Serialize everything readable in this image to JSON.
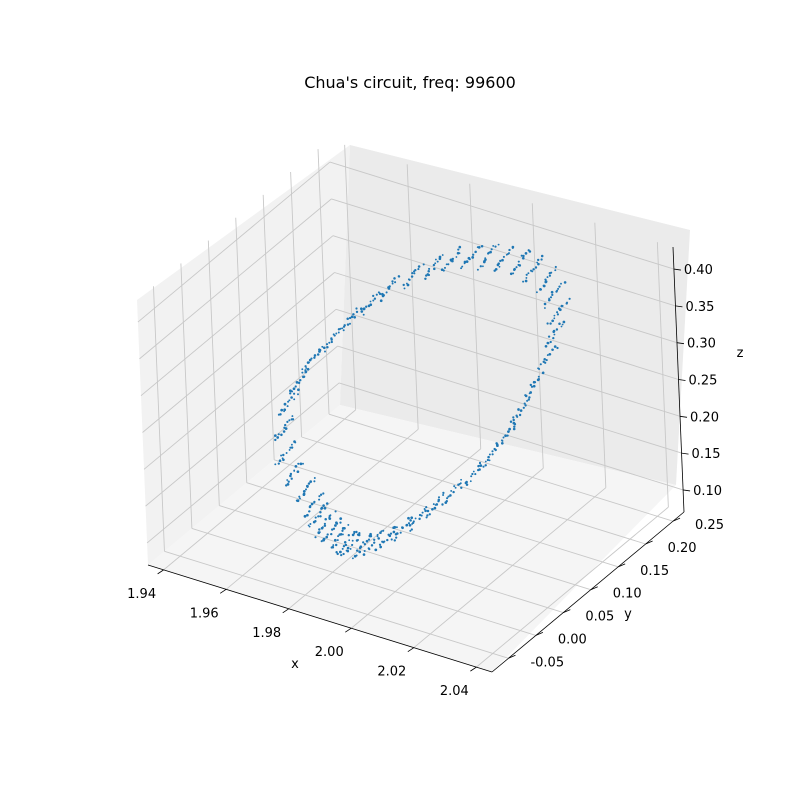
{
  "chart_data": {
    "type": "scatter",
    "title": "Chua's circuit, freq: 99600",
    "xlabel": "x",
    "ylabel": "y",
    "zlabel": "z",
    "xlim": [
      1.935,
      2.045
    ],
    "ylim": [
      -0.08,
      0.27
    ],
    "zlim": [
      0.07,
      0.43
    ],
    "xticks": [
      "1.94",
      "1.96",
      "1.98",
      "2.00",
      "2.02",
      "2.04"
    ],
    "yticks": [
      "-0.05",
      "0.00",
      "0.05",
      "0.10",
      "0.15",
      "0.20",
      "0.25"
    ],
    "zticks": [
      "0.10",
      "0.15",
      "0.20",
      "0.25",
      "0.30",
      "0.35",
      "0.40"
    ],
    "grid": true,
    "marker_color": "#1f77b4",
    "series": [
      {
        "clusters": [
          {
            "x": 1.962,
            "y": 0.07,
            "z": 0.095
          },
          {
            "x": 1.965,
            "y": 0.06,
            "z": 0.09
          },
          {
            "x": 1.969,
            "y": 0.05,
            "z": 0.09
          },
          {
            "x": 1.973,
            "y": 0.04,
            "z": 0.092
          },
          {
            "x": 1.977,
            "y": 0.03,
            "z": 0.095
          },
          {
            "x": 1.981,
            "y": 0.02,
            "z": 0.1
          },
          {
            "x": 1.985,
            "y": 0.01,
            "z": 0.108
          },
          {
            "x": 1.99,
            "y": 0.0,
            "z": 0.12
          },
          {
            "x": 1.995,
            "y": -0.005,
            "z": 0.135
          },
          {
            "x": 2.0,
            "y": -0.01,
            "z": 0.15
          },
          {
            "x": 2.005,
            "y": -0.01,
            "z": 0.168
          },
          {
            "x": 2.01,
            "y": -0.01,
            "z": 0.188
          },
          {
            "x": 2.015,
            "y": -0.005,
            "z": 0.21
          },
          {
            "x": 2.02,
            "y": 0.0,
            "z": 0.232
          },
          {
            "x": 2.025,
            "y": 0.01,
            "z": 0.256
          },
          {
            "x": 2.029,
            "y": 0.02,
            "z": 0.28
          },
          {
            "x": 2.032,
            "y": 0.035,
            "z": 0.305
          },
          {
            "x": 2.034,
            "y": 0.05,
            "z": 0.33
          },
          {
            "x": 2.035,
            "y": 0.07,
            "z": 0.355
          },
          {
            "x": 2.035,
            "y": 0.095,
            "z": 0.375
          },
          {
            "x": 2.033,
            "y": 0.12,
            "z": 0.39
          },
          {
            "x": 2.03,
            "y": 0.145,
            "z": 0.4
          },
          {
            "x": 2.025,
            "y": 0.165,
            "z": 0.405
          },
          {
            "x": 2.02,
            "y": 0.18,
            "z": 0.408
          },
          {
            "x": 2.014,
            "y": 0.19,
            "z": 0.408
          },
          {
            "x": 2.008,
            "y": 0.2,
            "z": 0.404
          },
          {
            "x": 2.002,
            "y": 0.205,
            "z": 0.398
          },
          {
            "x": 1.996,
            "y": 0.21,
            "z": 0.39
          },
          {
            "x": 1.99,
            "y": 0.212,
            "z": 0.38
          },
          {
            "x": 1.984,
            "y": 0.212,
            "z": 0.368
          },
          {
            "x": 1.978,
            "y": 0.21,
            "z": 0.352
          },
          {
            "x": 1.972,
            "y": 0.205,
            "z": 0.335
          },
          {
            "x": 1.966,
            "y": 0.198,
            "z": 0.315
          },
          {
            "x": 1.961,
            "y": 0.19,
            "z": 0.293
          },
          {
            "x": 1.956,
            "y": 0.18,
            "z": 0.27
          },
          {
            "x": 1.952,
            "y": 0.168,
            "z": 0.246
          },
          {
            "x": 1.948,
            "y": 0.155,
            "z": 0.222
          },
          {
            "x": 1.946,
            "y": 0.14,
            "z": 0.198
          },
          {
            "x": 1.945,
            "y": 0.125,
            "z": 0.175
          },
          {
            "x": 1.946,
            "y": 0.11,
            "z": 0.153
          },
          {
            "x": 1.949,
            "y": 0.095,
            "z": 0.132
          },
          {
            "x": 1.953,
            "y": 0.085,
            "z": 0.115
          },
          {
            "x": 1.958,
            "y": 0.078,
            "z": 0.103
          }
        ]
      }
    ]
  }
}
